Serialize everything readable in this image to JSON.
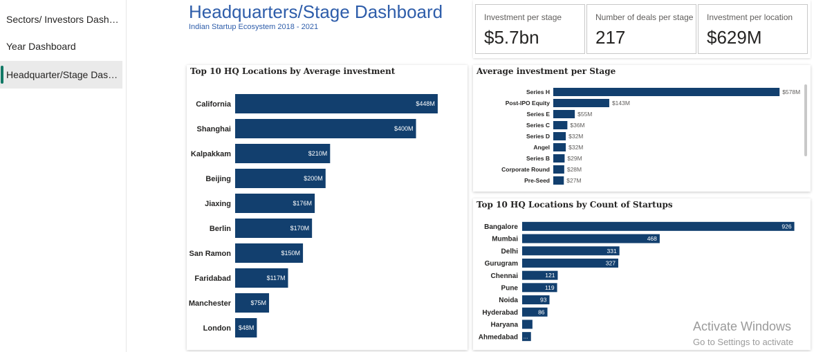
{
  "nav": {
    "items": [
      {
        "label": "Sectors/ Investors Dashboard",
        "active": false
      },
      {
        "label": "Year Dashboard",
        "active": false
      },
      {
        "label": "Headquarter/Stage Dashboard",
        "active": true
      }
    ]
  },
  "header": {
    "title": "Headquarters/Stage Dashboard",
    "subtitle": "Indian Startup Ecosystem 2018 - 2021"
  },
  "kpis": [
    {
      "label": "Investment per stage",
      "value": "$5.7bn"
    },
    {
      "label": "Number of deals per stage",
      "value": "217"
    },
    {
      "label": "Investment per location",
      "value": "$629M"
    }
  ],
  "colors": {
    "bar": "#123f6e",
    "accent": "#117865",
    "title": "#2e5daa"
  },
  "chart_data": [
    {
      "id": "hq_avg",
      "type": "bar",
      "orientation": "horizontal",
      "title": "Top 10 HQ Locations by Average investment",
      "categories": [
        "California",
        "Shanghai",
        "Kalpakkam",
        "Beijing",
        "Jiaxing",
        "Berlin",
        "San Ramon",
        "Faridabad",
        "Manchester",
        "London"
      ],
      "values": [
        448,
        400,
        210,
        200,
        176,
        170,
        150,
        117,
        75,
        48
      ],
      "data_labels": [
        "$448M",
        "$400M",
        "$210M",
        "$200M",
        "$176M",
        "$170M",
        "$150M",
        "$117M",
        "$75M",
        "$48M"
      ],
      "unit": "$M",
      "xlim": [
        0,
        520
      ]
    },
    {
      "id": "stage_avg",
      "type": "bar",
      "orientation": "horizontal",
      "title": "Average investment per Stage",
      "categories": [
        "Series H",
        "Post-IPO Equity",
        "Series E",
        "Series C",
        "Series D",
        "Angel",
        "Series B",
        "Corporate Round",
        "Pre-Seed"
      ],
      "values": [
        578,
        143,
        55,
        36,
        32,
        32,
        29,
        28,
        27
      ],
      "data_labels": [
        "$578M",
        "$143M",
        "$55M",
        "$36M",
        "$32M",
        "$32M",
        "$29M",
        "$28M",
        "$27M"
      ],
      "unit": "$M",
      "xlim": [
        0,
        590
      ],
      "scrollbar": true
    },
    {
      "id": "hq_count",
      "type": "bar",
      "orientation": "horizontal",
      "title": "Top 10 HQ Locations by Count of Startups",
      "categories": [
        "Bangalore",
        "Mumbai",
        "Delhi",
        "Gurugram",
        "Chennai",
        "Pune",
        "Noida",
        "Hyderabad",
        "Haryana",
        "Ahmedabad"
      ],
      "values": [
        926,
        468,
        331,
        327,
        121,
        119,
        93,
        86,
        35,
        30
      ],
      "data_labels": [
        "926",
        "468",
        "331",
        "327",
        "121",
        "119",
        "93",
        "86",
        "",
        "..."
      ],
      "xlim": [
        0,
        1000
      ]
    }
  ],
  "watermark": {
    "line1": "Activate Windows",
    "line2": "Go to Settings to activate"
  }
}
